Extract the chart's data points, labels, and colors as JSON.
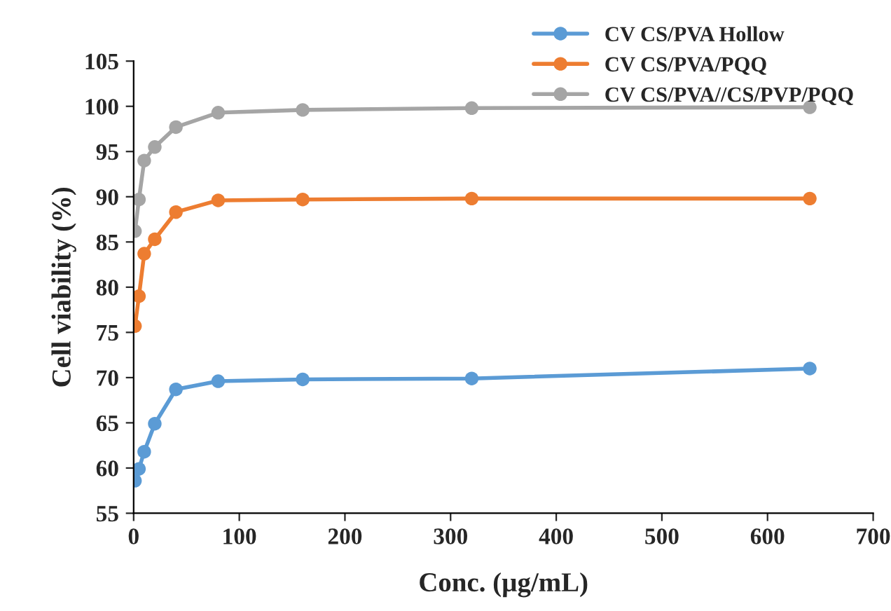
{
  "chart_data": {
    "type": "line",
    "xlabel": "Conc. (µg/mL)",
    "ylabel": "Cell viability (%)",
    "x": [
      1.25,
      5,
      10,
      20,
      40,
      80,
      160,
      320,
      640
    ],
    "series": [
      {
        "name": "CV CS/PVA Hollow",
        "color": "#5b9bd5",
        "values": [
          58.6,
          59.9,
          61.8,
          64.9,
          68.7,
          69.6,
          69.8,
          69.9,
          71.0
        ]
      },
      {
        "name": "CV CS/PVA/PQQ",
        "color": "#ed7d31",
        "values": [
          75.7,
          79.0,
          83.7,
          85.3,
          88.3,
          89.6,
          89.7,
          89.8,
          89.8
        ]
      },
      {
        "name": "CV CS/PVA//CS/PVP/PQQ",
        "color": "#a5a5a5",
        "values": [
          86.2,
          89.7,
          94.0,
          95.5,
          97.7,
          99.3,
          99.6,
          99.8,
          99.9
        ]
      }
    ],
    "xlim": [
      0,
      700
    ],
    "xticks": [
      0,
      100,
      200,
      300,
      400,
      500,
      600,
      700
    ],
    "ylim": [
      55,
      105
    ],
    "yticks": [
      55,
      60,
      65,
      70,
      75,
      80,
      85,
      90,
      95,
      100,
      105
    ],
    "grid": false,
    "legend": "top right",
    "marker": "circle",
    "line_style": "solid"
  }
}
